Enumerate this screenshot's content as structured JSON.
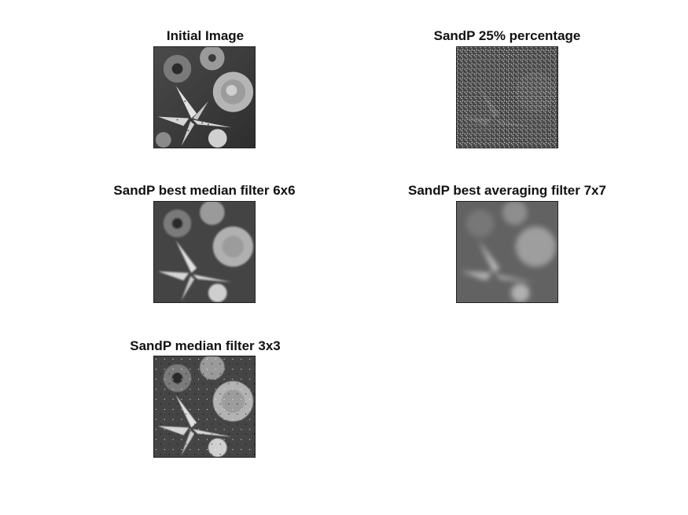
{
  "figure": {
    "panels": [
      {
        "title": "Initial Image",
        "variant": "original"
      },
      {
        "title": "SandP 25% percentage",
        "variant": "noisy"
      },
      {
        "title": "SandP best median filter 6x6",
        "variant": "median-large"
      },
      {
        "title": "SandP best averaging filter 7x7",
        "variant": "average"
      },
      {
        "title": "SandP  median filter 3x3",
        "variant": "median-small"
      }
    ]
  },
  "colors": {
    "background": "#ffffff",
    "title_text": "#111111",
    "image_border": "#222222"
  }
}
